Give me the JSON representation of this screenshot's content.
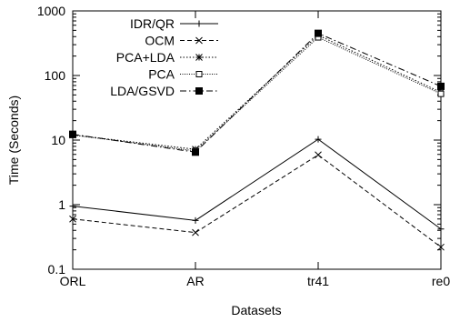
{
  "chart_data": {
    "type": "line",
    "title": "",
    "xlabel": "Datasets",
    "ylabel": "Time (Seconds)",
    "yscale": "log",
    "ylim": [
      0.1,
      1000
    ],
    "y_ticks": [
      "0.1",
      "1",
      "10",
      "100",
      "1000"
    ],
    "categories": [
      "ORL",
      "AR",
      "tr41",
      "re0"
    ],
    "grid": false,
    "legend_position": "top-left",
    "series": [
      {
        "name": "IDR/QR",
        "values": [
          0.95,
          0.57,
          10.3,
          0.42
        ],
        "dash": "",
        "marker": "plus"
      },
      {
        "name": "OCM",
        "values": [
          0.6,
          0.37,
          5.9,
          0.22
        ],
        "dash": "5,3",
        "marker": "x"
      },
      {
        "name": "PCA+LDA",
        "values": [
          12,
          7.2,
          420,
          55
        ],
        "dash": "1.5,2",
        "marker": "star"
      },
      {
        "name": "PCA",
        "values": [
          12,
          6.8,
          390,
          52
        ],
        "dash": "1,1.5",
        "marker": "square-open"
      },
      {
        "name": "LDA/GSVD",
        "values": [
          12.3,
          6.5,
          450,
          68
        ],
        "dash": "7,3,1.5,3",
        "marker": "square-filled"
      }
    ]
  }
}
